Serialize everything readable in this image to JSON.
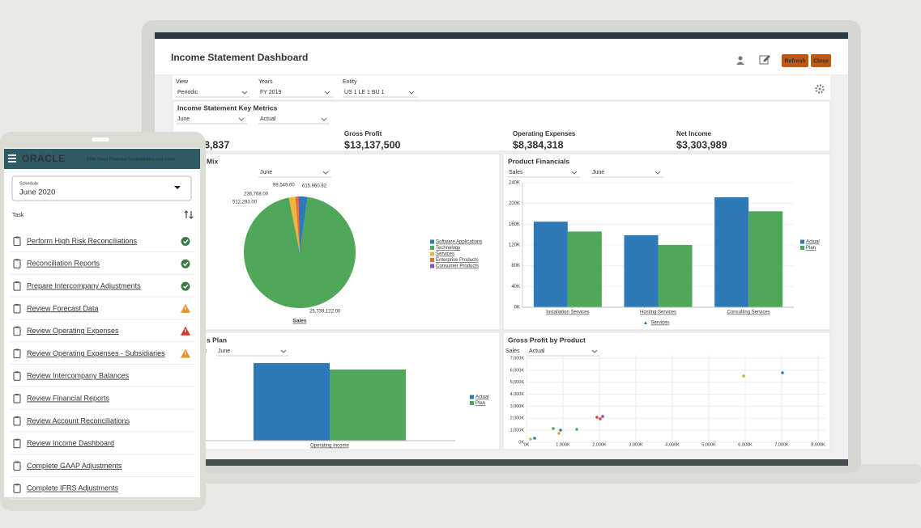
{
  "dashboard": {
    "title": "Income Statement Dashboard",
    "buttons": [
      "Refresh",
      "Close"
    ],
    "filters": [
      {
        "label": "View",
        "value": "Periodic"
      },
      {
        "label": "Years",
        "value": "FY 2019"
      },
      {
        "label": "Entity",
        "value": "US 1 LE 1 BU 1"
      }
    ],
    "key_metrics": {
      "title": "Income Statement Key Metrics",
      "selectors": [
        "June",
        "Actual"
      ],
      "metrics": [
        {
          "value": "8,837"
        },
        {
          "label": "Gross Profit",
          "value": "$13,137,500"
        },
        {
          "label": "Operating Expenses",
          "value": "$8,384,318"
        },
        {
          "label": "Net Income",
          "value": "$3,303,989"
        }
      ]
    },
    "charts": [
      {
        "type": "pie",
        "title": "Mix",
        "selectors": [
          "June"
        ],
        "x_label": "Sales",
        "categories": [
          "Software Applications",
          "Technology",
          "Services",
          "Enterprise Products",
          "Consumer Products"
        ],
        "colors": [
          "#2e7ab8",
          "#4fa85a",
          "#f0b43c",
          "#e2702f",
          "#8a4fb0"
        ],
        "values": [
          615960.82,
          25739122,
          512293,
          236768,
          99549
        ],
        "value_labels": [
          "615,960.82",
          "25,739,122.00",
          "512,293.00",
          "236,768.00",
          "99,549.00"
        ]
      },
      {
        "type": "bar",
        "title": "Product Financials",
        "selectors": [
          "Sales",
          "June"
        ],
        "x_label": "Services",
        "categories": [
          "Installation Services",
          "Hosting Services",
          "Consulting Services"
        ],
        "series": [
          {
            "name": "Actual",
            "color": "#2e7ab8",
            "values": [
              165,
              139,
              212
            ]
          },
          {
            "name": "Plan",
            "color": "#4fa85a",
            "values": [
              146,
              120,
              185
            ]
          }
        ],
        "ylim": [
          0,
          240
        ],
        "yticks": [
          {
            "value": 0,
            "label": "0K"
          },
          {
            "value": 40,
            "label": "40K"
          },
          {
            "value": 80,
            "label": "80K"
          },
          {
            "value": 120,
            "label": "120K"
          },
          {
            "value": 160,
            "label": "160K"
          },
          {
            "value": 200,
            "label": "200K"
          },
          {
            "value": 240,
            "label": "240K"
          }
        ],
        "grid": true
      },
      {
        "type": "bar",
        "title": "s Plan",
        "selector_label": "t",
        "selectors": [
          "June"
        ],
        "categories": [
          "Operating Income"
        ],
        "series": [
          {
            "name": "Actual",
            "color": "#2e7ab8",
            "values": [
              4753182
            ]
          },
          {
            "name": "Plan",
            "color": "#4fa85a",
            "values": [
              4357000
            ]
          }
        ],
        "ylim": [
          0,
          5350000
        ]
      },
      {
        "type": "scatter",
        "title": "Gross Profit by Product",
        "selector_label": "Sales",
        "selectors": [
          "Actual"
        ],
        "x": [
          111,
          222,
          733,
          933,
          889,
          1378,
          1933,
          2022,
          2089,
          5956,
          7022
        ],
        "values": [
          269,
          336,
          1144,
          1009,
          740,
          1077,
          2086,
          1952,
          2153,
          5518,
          5787
        ],
        "colors": [
          "#e8a33d",
          "#2e7ab8",
          "#4fa85a",
          "#2e7ab8",
          "#e8a33d",
          "#4fa85a",
          "#d9453c",
          "#d9453c",
          "#7b4fa3",
          "#c9b23a",
          "#2e7ab8"
        ],
        "xlim": [
          0,
          8200
        ],
        "ylim": [
          0,
          7300
        ],
        "xticks": [
          {
            "value": 0,
            "label": "0K"
          },
          {
            "value": 1000,
            "label": "1,000K"
          },
          {
            "value": 2000,
            "label": "2,000K"
          },
          {
            "value": 3000,
            "label": "3,000K"
          },
          {
            "value": 4000,
            "label": "4,000K"
          },
          {
            "value": 5000,
            "label": "5,000K"
          },
          {
            "value": 6000,
            "label": "6,000K"
          },
          {
            "value": 7000,
            "label": "7,000K"
          },
          {
            "value": 8000,
            "label": "8,000K"
          }
        ],
        "yticks": [
          {
            "value": 0,
            "label": "0K"
          },
          {
            "value": 1000,
            "label": "1,000K"
          },
          {
            "value": 2000,
            "label": "2,000K"
          },
          {
            "value": 3000,
            "label": "3,000K"
          },
          {
            "value": 4000,
            "label": "4,000K"
          },
          {
            "value": 5000,
            "label": "5,000K"
          },
          {
            "value": 6000,
            "label": "6,000K"
          },
          {
            "value": 7000,
            "label": "7,000K"
          }
        ],
        "grid": true
      }
    ]
  },
  "tablet": {
    "brand": "ORACLE",
    "app_title": "EPM Cloud Financial Consolidation and Close",
    "schedule_label": "Schedule",
    "schedule": "June 2020",
    "task_header": "Task",
    "tasks": [
      {
        "name": "Perform High Risk Reconciliations",
        "status": "complete"
      },
      {
        "name": "Reconciliation Reports",
        "status": "complete"
      },
      {
        "name": "Prepare Intercompany Adjustments",
        "status": "complete"
      },
      {
        "name": "Review Forecast Data",
        "status": "warning"
      },
      {
        "name": "Review Operating Expenses",
        "status": "error"
      },
      {
        "name": "Review Operating Expenses - Subsidiaries",
        "status": "warning"
      },
      {
        "name": "Review Intercompany Balances"
      },
      {
        "name": "Review Financial Reports"
      },
      {
        "name": "Review Account Reconciliations"
      },
      {
        "name": "Review Income Dashboard"
      },
      {
        "name": "Complete GAAP Adjustments"
      },
      {
        "name": "Complete IFRS Adjustments"
      }
    ]
  }
}
